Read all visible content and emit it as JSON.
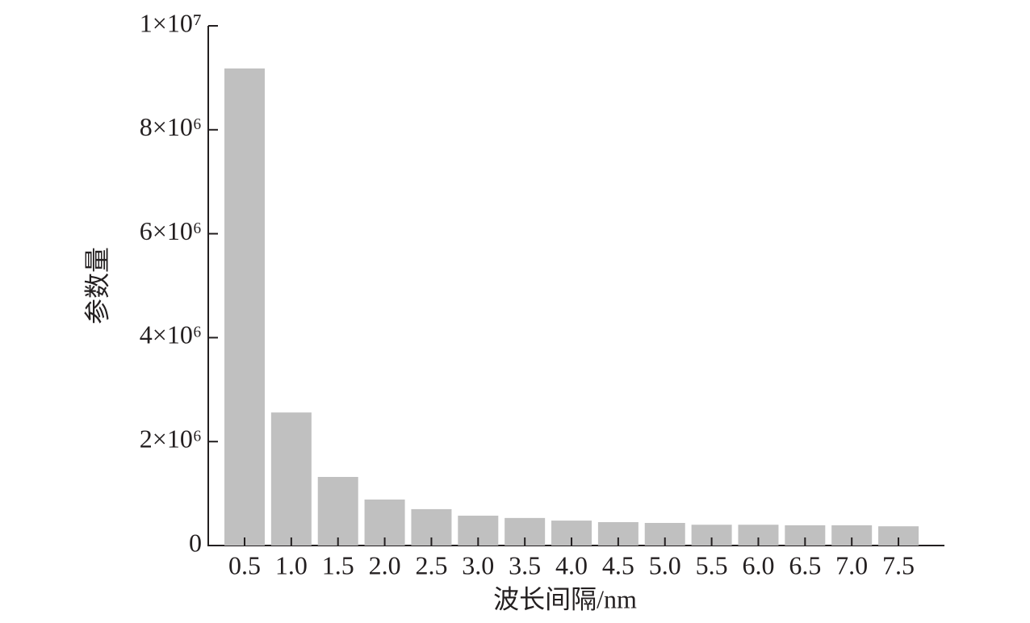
{
  "chart_data": {
    "type": "bar",
    "x_label": "波长间隔/nm",
    "y_label": "参数量",
    "categories": [
      "0.5",
      "1.0",
      "1.5",
      "2.0",
      "2.5",
      "3.0",
      "3.5",
      "4.0",
      "4.5",
      "5.0",
      "5.5",
      "6.0",
      "6.5",
      "7.0",
      "7.5"
    ],
    "values": [
      9180000,
      2560000,
      1320000,
      885000,
      700000,
      575000,
      530000,
      480000,
      450000,
      435000,
      400000,
      400000,
      390000,
      390000,
      370000
    ],
    "color": "#c0c0c0",
    "ylim": [
      0,
      10000000
    ],
    "yticks": [
      0,
      {
        "value": 2000000,
        "label": "2×10⁶"
      },
      {
        "value": 4000000,
        "label": "4×10⁶"
      },
      {
        "value": 6000000,
        "label": "6×10⁶"
      },
      {
        "value": 8000000,
        "label": "8×10⁶"
      },
      {
        "value": 10000000,
        "label": "1×10⁷"
      }
    ],
    "grid": false
  }
}
